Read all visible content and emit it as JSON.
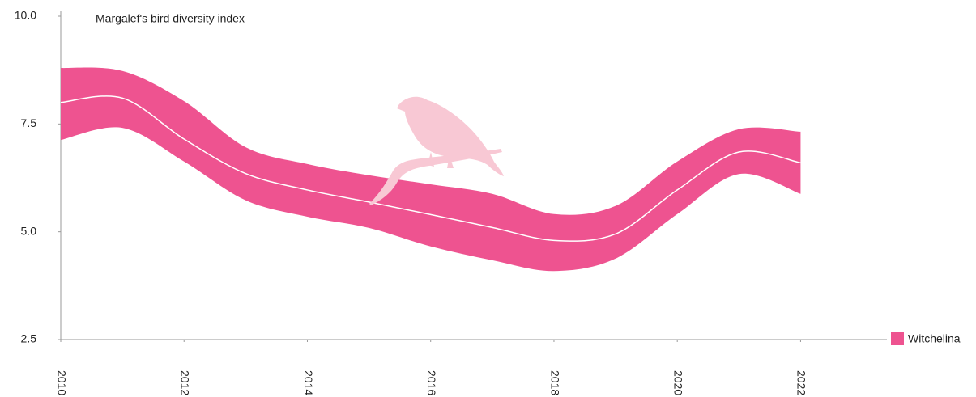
{
  "chart_data": {
    "type": "band",
    "title": "Margalef's bird diversity index",
    "x": [
      2010,
      2011,
      2012,
      2013,
      2014,
      2015,
      2016,
      2017,
      2018,
      2019,
      2020,
      2021,
      2022
    ],
    "series": [
      {
        "name": "Witchelina",
        "color": "#ee5390",
        "line_color": "#ffffff",
        "values": [
          8.0,
          8.1,
          7.15,
          6.35,
          5.97,
          5.69,
          5.4,
          5.1,
          4.8,
          4.95,
          5.97,
          6.85,
          6.6
        ],
        "low": [
          7.13,
          7.41,
          6.63,
          5.73,
          5.35,
          5.09,
          4.66,
          4.34,
          4.09,
          4.38,
          5.41,
          6.34,
          5.88
        ],
        "high": [
          8.8,
          8.73,
          8.03,
          6.96,
          6.57,
          6.31,
          6.1,
          5.88,
          5.41,
          5.6,
          6.63,
          7.38,
          7.32
        ]
      }
    ],
    "xlim": [
      2010,
      2023.4
    ],
    "xticks": [
      2010,
      2012,
      2014,
      2016,
      2018,
      2020,
      2022
    ],
    "ylim": [
      2.5,
      10
    ],
    "yticks": [
      {
        "value": 2.5,
        "label": "2.5"
      },
      {
        "value": 5,
        "label": "5.0"
      },
      7.5,
      {
        "value": 10,
        "label": "10.0"
      }
    ],
    "grid": false,
    "legend": "bottom-right"
  }
}
